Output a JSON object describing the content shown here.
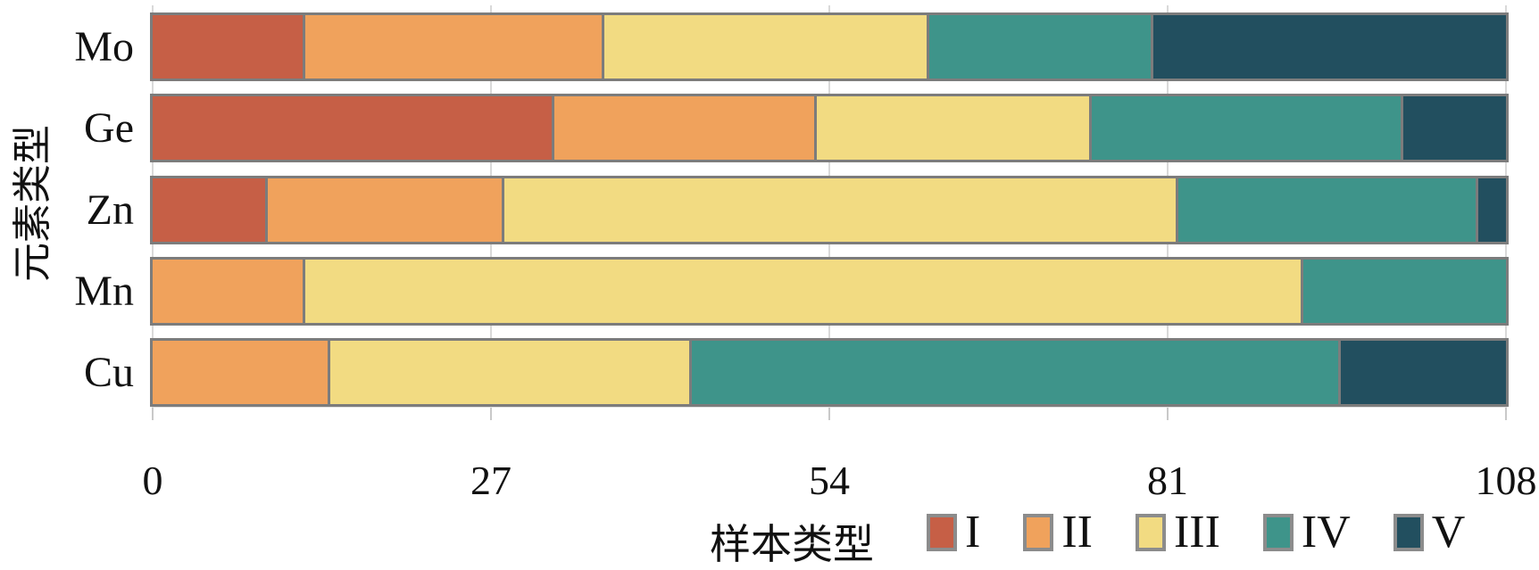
{
  "figure": {
    "y_axis_title": "元素类型",
    "x_axis_title": "样本类型",
    "background": "#ffffff"
  },
  "chart_data": {
    "type": "bar",
    "orientation": "horizontal",
    "stacked": true,
    "title": "",
    "xlabel": "样本类型",
    "ylabel": "元素类型",
    "categories": [
      "Mo",
      "Ge",
      "Zn",
      "Mn",
      "Cu"
    ],
    "series": [
      {
        "name": "I",
        "color": "#c65f46",
        "values": [
          12,
          32,
          9,
          0,
          0
        ]
      },
      {
        "name": "II",
        "color": "#f0a25c",
        "values": [
          24,
          21,
          19,
          12,
          14
        ]
      },
      {
        "name": "III",
        "color": "#f2db82",
        "values": [
          26,
          22,
          54,
          80,
          29
        ]
      },
      {
        "name": "IV",
        "color": "#3e948a",
        "values": [
          18,
          25,
          24,
          16,
          52
        ]
      },
      {
        "name": "V",
        "color": "#224f5f",
        "values": [
          28,
          8,
          2,
          0,
          13
        ]
      }
    ],
    "xlim": [
      0,
      108
    ],
    "xticks": [
      0,
      27,
      54,
      81,
      108
    ],
    "grid": "vertical",
    "legend_position": "bottom",
    "legend_labels": [
      "I",
      "II",
      "III",
      "IV",
      "V"
    ]
  },
  "style": {
    "bar_border_color": "#7c7c7c",
    "gridline_color": "#d9d9d9",
    "tick_color": "#c9c9c9",
    "text_color": "#111111",
    "legend_swatch_border": "#8c8c8c"
  }
}
